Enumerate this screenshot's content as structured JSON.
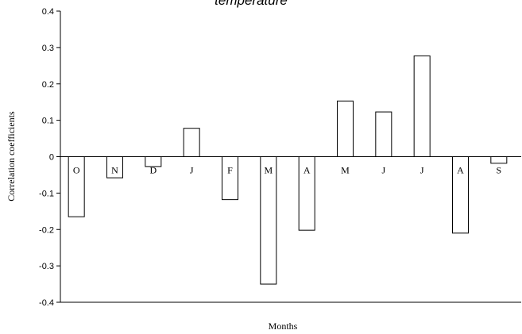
{
  "chart_data": {
    "type": "bar",
    "title": "temperature",
    "xlabel": "Months",
    "ylabel": "Correlation coefficients",
    "categories": [
      "O",
      "N",
      "D",
      "J",
      "F",
      "M",
      "A",
      "M",
      "J",
      "J",
      "A",
      "S"
    ],
    "values": [
      -0.165,
      -0.058,
      -0.027,
      0.078,
      -0.118,
      -0.35,
      -0.202,
      0.153,
      0.123,
      0.277,
      -0.21,
      -0.018
    ],
    "ylim": [
      -0.4,
      0.4
    ],
    "yticks": [
      "0.4",
      "0.3",
      "0.2",
      "0.1",
      "0",
      "-0.1",
      "-0.2",
      "-0.3",
      "-0.4"
    ],
    "grid": false,
    "legend": "none",
    "bar_fill": "#ffffff",
    "bar_stroke": "#000000"
  }
}
